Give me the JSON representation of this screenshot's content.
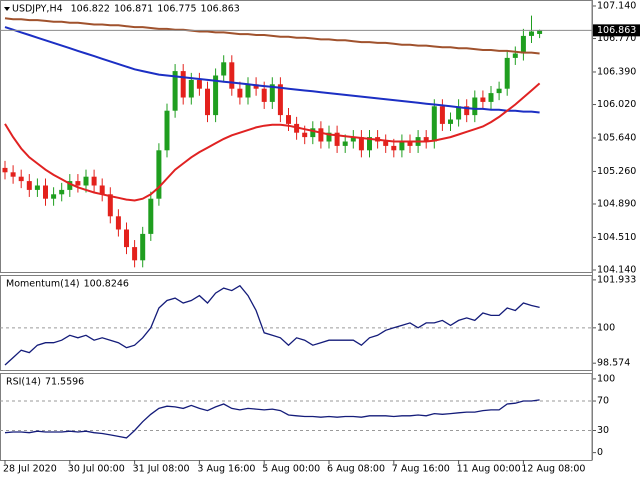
{
  "chart_data": [
    {
      "type": "candlestick",
      "title": "USDJPY,H4",
      "categories": [
        "28 Jul 2020",
        null,
        null,
        null,
        null,
        null,
        null,
        null,
        "30 Jul 00:00",
        null,
        null,
        null,
        null,
        null,
        null,
        null,
        "31 Jul 08:00",
        null,
        null,
        null,
        null,
        null,
        null,
        null,
        "3 Aug 16:00",
        null,
        null,
        null,
        null,
        null,
        null,
        null,
        "5 Aug 00:00",
        null,
        null,
        null,
        null,
        null,
        null,
        null,
        "6 Aug 08:00",
        null,
        null,
        null,
        null,
        null,
        null,
        null,
        "7 Aug 16:00",
        null,
        null,
        null,
        null,
        null,
        null,
        null,
        "11 Aug 00:00",
        null,
        null,
        null,
        null,
        null,
        null,
        null,
        "12 Aug 08:00",
        null,
        null
      ],
      "open": [
        105.3,
        105.25,
        105.2,
        105.15,
        105.05,
        105.1,
        104.95,
        105.0,
        105.05,
        105.15,
        105.1,
        105.2,
        105.1,
        105.0,
        104.75,
        104.6,
        104.4,
        104.25,
        104.55,
        104.95,
        105.5,
        105.95,
        106.4,
        106.1,
        106.3,
        106.2,
        105.9,
        106.35,
        106.5,
        106.2,
        106.1,
        106.25,
        106.2,
        106.05,
        106.25,
        105.9,
        105.8,
        105.7,
        105.65,
        105.75,
        105.6,
        105.7,
        105.55,
        105.6,
        105.65,
        105.5,
        105.65,
        105.6,
        105.55,
        105.5,
        105.6,
        105.55,
        105.65,
        105.6,
        106.0,
        105.8,
        105.85,
        106.0,
        105.9,
        106.1,
        106.05,
        106.15,
        106.2,
        106.55,
        106.6,
        106.8,
        106.822
      ],
      "high": [
        105.38,
        105.33,
        105.28,
        105.23,
        105.18,
        105.18,
        105.08,
        105.13,
        105.23,
        105.23,
        105.28,
        105.28,
        105.18,
        105.08,
        104.83,
        104.68,
        104.48,
        104.63,
        105.03,
        105.58,
        106.03,
        106.48,
        106.48,
        106.38,
        106.38,
        106.28,
        106.43,
        106.58,
        106.58,
        106.28,
        106.33,
        106.33,
        106.28,
        106.33,
        106.33,
        105.98,
        105.88,
        105.78,
        105.83,
        105.83,
        105.78,
        105.78,
        105.68,
        105.73,
        105.73,
        105.73,
        105.73,
        105.68,
        105.63,
        105.68,
        105.68,
        105.73,
        105.73,
        106.08,
        106.08,
        105.93,
        106.08,
        106.08,
        106.18,
        106.18,
        106.23,
        106.28,
        106.63,
        106.68,
        106.88,
        107.03,
        106.871
      ],
      "low": [
        105.17,
        105.12,
        105.07,
        104.97,
        104.97,
        104.87,
        104.87,
        104.92,
        104.97,
        105.02,
        105.02,
        105.02,
        104.92,
        104.67,
        104.52,
        104.32,
        104.17,
        104.17,
        104.47,
        104.87,
        105.42,
        105.87,
        106.02,
        106.02,
        106.12,
        105.82,
        105.82,
        106.27,
        106.12,
        106.02,
        106.02,
        106.12,
        105.97,
        105.97,
        105.82,
        105.72,
        105.62,
        105.57,
        105.57,
        105.52,
        105.52,
        105.47,
        105.47,
        105.52,
        105.42,
        105.42,
        105.52,
        105.47,
        105.42,
        105.42,
        105.47,
        105.47,
        105.52,
        105.52,
        105.72,
        105.72,
        105.77,
        105.82,
        105.82,
        105.97,
        105.97,
        106.07,
        106.12,
        106.47,
        106.52,
        106.72,
        106.775
      ],
      "close": [
        105.25,
        105.2,
        105.15,
        105.05,
        105.1,
        104.95,
        105.0,
        105.05,
        105.15,
        105.1,
        105.2,
        105.1,
        105.0,
        104.75,
        104.6,
        104.4,
        104.25,
        104.55,
        104.95,
        105.5,
        105.95,
        106.4,
        106.1,
        106.3,
        106.2,
        105.9,
        106.35,
        106.5,
        106.2,
        106.1,
        106.25,
        106.2,
        106.05,
        106.25,
        105.9,
        105.8,
        105.7,
        105.65,
        105.75,
        105.6,
        105.7,
        105.55,
        105.6,
        105.65,
        105.5,
        105.65,
        105.6,
        105.55,
        105.5,
        105.6,
        105.55,
        105.65,
        105.6,
        106.0,
        105.8,
        105.85,
        106.0,
        105.9,
        106.1,
        106.05,
        106.15,
        106.2,
        106.55,
        106.6,
        106.8,
        106.85,
        106.863
      ],
      "up_color": "#1f9e1f",
      "down_color": "#e3211c",
      "series": [
        {
          "color": "#a0522d",
          "values": [
            107.0,
            106.99,
            106.99,
            106.98,
            106.98,
            106.97,
            106.96,
            106.96,
            106.95,
            106.95,
            106.94,
            106.93,
            106.93,
            106.92,
            106.92,
            106.91,
            106.9,
            106.9,
            106.89,
            106.88,
            106.88,
            106.87,
            106.87,
            106.86,
            106.85,
            106.85,
            106.84,
            106.84,
            106.83,
            106.82,
            106.82,
            106.81,
            106.81,
            106.8,
            106.79,
            106.79,
            106.78,
            106.78,
            106.77,
            106.76,
            106.76,
            106.75,
            106.75,
            106.74,
            106.73,
            106.73,
            106.72,
            106.72,
            106.71,
            106.7,
            106.7,
            106.69,
            106.69,
            106.68,
            106.67,
            106.67,
            106.66,
            106.66,
            106.65,
            106.64,
            106.64,
            106.63,
            106.63,
            106.62,
            106.61,
            106.61,
            106.6
          ]
        },
        {
          "color": "#1c2fc4",
          "values": [
            106.9,
            106.87,
            106.84,
            106.81,
            106.78,
            106.75,
            106.72,
            106.69,
            106.66,
            106.63,
            106.6,
            106.57,
            106.54,
            106.51,
            106.48,
            106.45,
            106.42,
            106.4,
            106.38,
            106.36,
            106.35,
            106.34,
            106.33,
            106.32,
            106.31,
            106.3,
            106.29,
            106.28,
            106.27,
            106.26,
            106.25,
            106.24,
            106.23,
            106.22,
            106.21,
            106.2,
            106.19,
            106.18,
            106.17,
            106.16,
            106.15,
            106.14,
            106.13,
            106.12,
            106.11,
            106.1,
            106.09,
            106.08,
            106.07,
            106.06,
            106.05,
            106.04,
            106.03,
            106.02,
            106.01,
            106.0,
            105.99,
            105.98,
            105.97,
            105.97,
            105.96,
            105.96,
            105.95,
            105.95,
            105.94,
            105.94,
            105.93
          ]
        },
        {
          "color": "#e02222",
          "values": [
            105.8,
            105.65,
            105.52,
            105.42,
            105.35,
            105.28,
            105.22,
            105.17,
            105.12,
            105.08,
            105.05,
            105.02,
            105.0,
            104.98,
            104.96,
            104.94,
            104.93,
            104.95,
            105.0,
            105.08,
            105.18,
            105.28,
            105.35,
            105.42,
            105.48,
            105.53,
            105.58,
            105.63,
            105.67,
            105.7,
            105.73,
            105.76,
            105.78,
            105.79,
            105.79,
            105.78,
            105.76,
            105.74,
            105.72,
            105.7,
            105.68,
            105.67,
            105.66,
            105.65,
            105.64,
            105.63,
            105.62,
            105.61,
            105.6,
            105.6,
            105.6,
            105.6,
            105.6,
            105.61,
            105.63,
            105.65,
            105.68,
            105.71,
            105.74,
            105.77,
            105.82,
            105.88,
            105.95,
            106.02,
            106.1,
            106.18,
            106.26
          ]
        }
      ],
      "ylim": [
        104.117,
        107.208
      ],
      "yticks": [
        {
          "value": 107.14,
          "label": "107.140"
        },
        {
          "value": 106.77,
          "label": "106.770"
        },
        {
          "value": 106.39,
          "label": "106.390"
        },
        {
          "value": 106.02,
          "label": "106.020"
        },
        {
          "value": 105.64,
          "label": "105.640"
        },
        {
          "value": 105.26,
          "label": "105.260"
        },
        {
          "value": 104.89,
          "label": "104.890"
        },
        {
          "value": 104.51,
          "label": "104.510"
        },
        {
          "value": 104.14,
          "label": "104.140"
        }
      ]
    },
    {
      "type": "line",
      "title": "Momentum(14)",
      "series": [
        {
          "color": "#141c7a",
          "values": [
            98.5,
            98.8,
            99.1,
            99.0,
            99.3,
            99.4,
            99.4,
            99.5,
            99.7,
            99.6,
            99.7,
            99.5,
            99.6,
            99.5,
            99.4,
            99.2,
            99.3,
            99.6,
            100.0,
            100.8,
            101.1,
            101.2,
            101.0,
            101.1,
            101.3,
            101.0,
            101.4,
            101.6,
            101.5,
            101.7,
            101.3,
            100.7,
            99.8,
            99.7,
            99.6,
            99.3,
            99.6,
            99.5,
            99.3,
            99.4,
            99.5,
            99.5,
            99.5,
            99.5,
            99.3,
            99.6,
            99.7,
            99.9,
            100.0,
            100.1,
            100.2,
            100.0,
            100.2,
            100.2,
            100.3,
            100.1,
            100.3,
            100.4,
            100.3,
            100.6,
            100.5,
            100.5,
            100.8,
            100.7,
            101.0,
            100.9,
            100.8246
          ]
        }
      ],
      "ylim": [
        98.3,
        102.13
      ],
      "yticks": [
        101.933,
        100,
        98.574
      ],
      "level_lines": true
    },
    {
      "type": "line",
      "title": "RSI(14)",
      "series": [
        {
          "color": "#141c7a",
          "values": [
            27,
            28,
            28,
            27,
            29,
            28,
            28,
            28,
            29,
            28,
            29,
            27,
            26,
            24,
            22,
            20,
            30,
            42,
            52,
            60,
            63,
            62,
            60,
            64,
            60,
            57,
            62,
            66,
            60,
            58,
            60,
            59,
            58,
            59,
            57,
            51,
            50,
            49,
            49,
            48,
            49,
            48,
            49,
            49,
            48,
            50,
            50,
            50,
            49,
            50,
            50,
            51,
            50,
            53,
            52,
            53,
            54,
            55,
            55,
            57,
            58,
            58,
            66,
            67,
            70,
            70,
            71.5596
          ]
        }
      ],
      "ylim": [
        -10,
        108
      ],
      "yticks": [
        100,
        70,
        30,
        0
      ],
      "level_lines": true
    }
  ]
}
